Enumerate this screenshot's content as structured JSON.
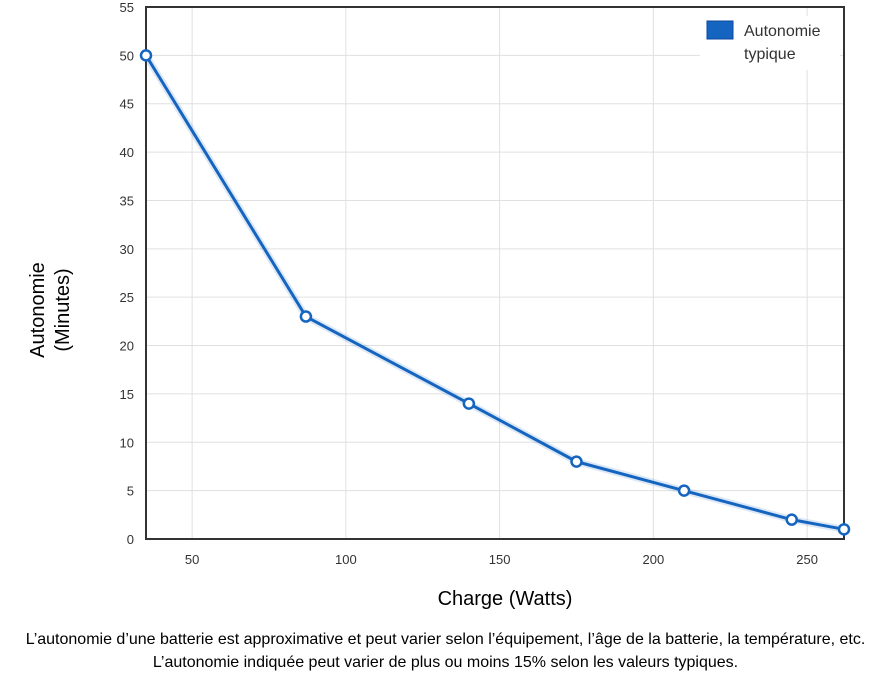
{
  "chart_data": {
    "type": "line",
    "xlabel": "Charge (Watts)",
    "ylabel": [
      "Autonomie",
      "(Minutes)"
    ],
    "xlim": [
      35,
      262
    ],
    "ylim": [
      0,
      55
    ],
    "x_ticks": [
      50,
      100,
      150,
      200,
      250
    ],
    "y_ticks": [
      0,
      5,
      10,
      15,
      20,
      25,
      30,
      35,
      40,
      45,
      50,
      55
    ],
    "grid": true,
    "legend_position": "top-right",
    "series": [
      {
        "name": [
          "Autonomie",
          "typique"
        ],
        "color": "#1565c0",
        "points": [
          {
            "x": 35,
            "y": 50
          },
          {
            "x": 87,
            "y": 23
          },
          {
            "x": 140,
            "y": 14
          },
          {
            "x": 175,
            "y": 8
          },
          {
            "x": 210,
            "y": 5
          },
          {
            "x": 245,
            "y": 2
          },
          {
            "x": 262,
            "y": 1
          }
        ]
      }
    ]
  },
  "footnote": "L’autonomie d’une batterie est approximative et peut varier selon l’équipement, l’âge de la batterie, la température, etc. L’autonomie indiquée peut varier de plus ou moins 15% selon les valeurs typiques."
}
